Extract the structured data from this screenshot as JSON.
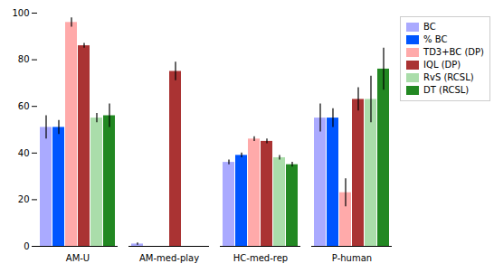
{
  "chart_data": {
    "type": "bar",
    "categories": [
      "AM-U",
      "AM-med-play",
      "HC-med-rep",
      "P-human"
    ],
    "series": [
      {
        "name": "BC",
        "color": "#aaaaff",
        "values": [
          51,
          1,
          36,
          55
        ],
        "errors": [
          5,
          0.5,
          1,
          6
        ]
      },
      {
        "name": "% BC",
        "color": "#0055ff",
        "values": [
          51,
          0,
          39,
          55
        ],
        "errors": [
          3,
          0,
          1,
          4
        ]
      },
      {
        "name": "TD3+BC (DP)",
        "color": "#ffaaaa",
        "values": [
          96,
          0,
          46,
          23
        ],
        "errors": [
          2,
          0,
          1,
          6
        ]
      },
      {
        "name": "IQL (DP)",
        "color": "#aa3333",
        "values": [
          86,
          75,
          45,
          63
        ],
        "errors": [
          1,
          4,
          1,
          5
        ]
      },
      {
        "name": "RvS (RCSL)",
        "color": "#aaddaa",
        "values": [
          55,
          0,
          38,
          63
        ],
        "errors": [
          2,
          0,
          1,
          10
        ]
      },
      {
        "name": "DT (RCSL)",
        "color": "#228822",
        "values": [
          56,
          0,
          35,
          76
        ],
        "errors": [
          5,
          0,
          1,
          9
        ]
      }
    ],
    "ylim": [
      0,
      100
    ],
    "yticks": [
      0,
      20,
      40,
      60,
      80,
      100
    ],
    "grid": false,
    "legend": "upper right"
  }
}
